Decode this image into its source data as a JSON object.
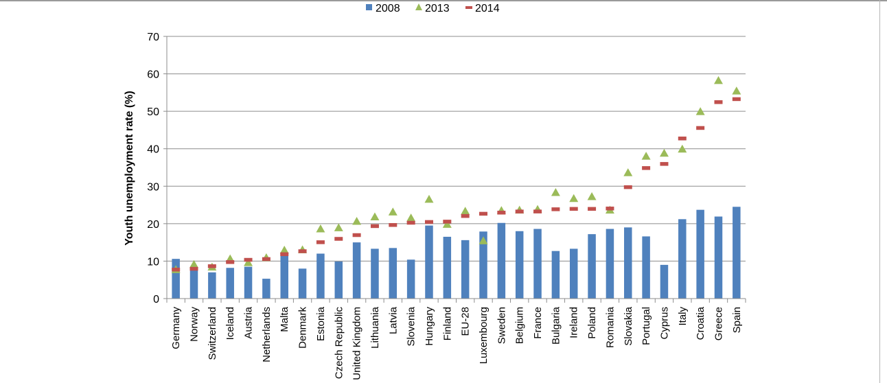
{
  "chart_data": {
    "type": "bar",
    "ylabel": "Youth unemployment rate (%)",
    "ylim": [
      0,
      70
    ],
    "yticks": [
      0,
      10,
      20,
      30,
      40,
      50,
      60,
      70
    ],
    "grid": true,
    "legend_position": "top-center",
    "colors": {
      "2008": "#4f81bd",
      "2013": "#9bbb59",
      "2014": "#c0504d"
    },
    "categories": [
      "Germany",
      "Norway",
      "Switzerland",
      "Iceland",
      "Austria",
      "Netherlands",
      "Malta",
      "Denmark",
      "Estonia",
      "Czech Republic",
      "United Kingdom",
      "Lithuania",
      "Latvia",
      "Slovenia",
      "Hungary",
      "Finland",
      "EU-28",
      "Luxembourg",
      "Sweden",
      "Belgium",
      "France",
      "Bulgaria",
      "Ireland",
      "Poland",
      "Romania",
      "Slovakia",
      "Portugal",
      "Cyprus",
      "Italy",
      "Croatia",
      "Greece",
      "Spain"
    ],
    "series": [
      {
        "name": "2008",
        "marker": "bar",
        "values": [
          10.6,
          7.6,
          7.0,
          8.2,
          8.5,
          5.3,
          11.7,
          8.0,
          12.0,
          9.9,
          15.0,
          13.3,
          13.5,
          10.4,
          19.5,
          16.5,
          15.6,
          17.9,
          20.2,
          18.0,
          18.6,
          12.7,
          13.3,
          17.2,
          18.6,
          19.0,
          16.6,
          9.0,
          21.2,
          23.7,
          21.9,
          24.5
        ]
      },
      {
        "name": "2013",
        "marker": "triangle",
        "values": [
          7.8,
          9.2,
          8.5,
          10.7,
          9.7,
          11.0,
          13.0,
          13.1,
          18.7,
          19.0,
          20.7,
          21.9,
          23.2,
          21.6,
          26.6,
          19.9,
          23.4,
          15.5,
          23.6,
          23.7,
          23.9,
          28.4,
          26.8,
          27.3,
          23.7,
          33.7,
          38.1,
          38.9,
          40.0,
          50.0,
          58.3,
          55.5
        ]
      },
      {
        "name": "2014",
        "marker": "dash",
        "values": [
          7.7,
          7.9,
          8.6,
          9.7,
          10.3,
          10.5,
          11.8,
          12.6,
          15.0,
          15.9,
          16.9,
          19.3,
          19.6,
          20.2,
          20.4,
          20.5,
          22.0,
          22.6,
          22.9,
          23.2,
          23.2,
          23.8,
          23.9,
          23.9,
          24.0,
          29.7,
          34.8,
          35.9,
          42.7,
          45.5,
          52.4,
          53.2
        ]
      }
    ]
  }
}
